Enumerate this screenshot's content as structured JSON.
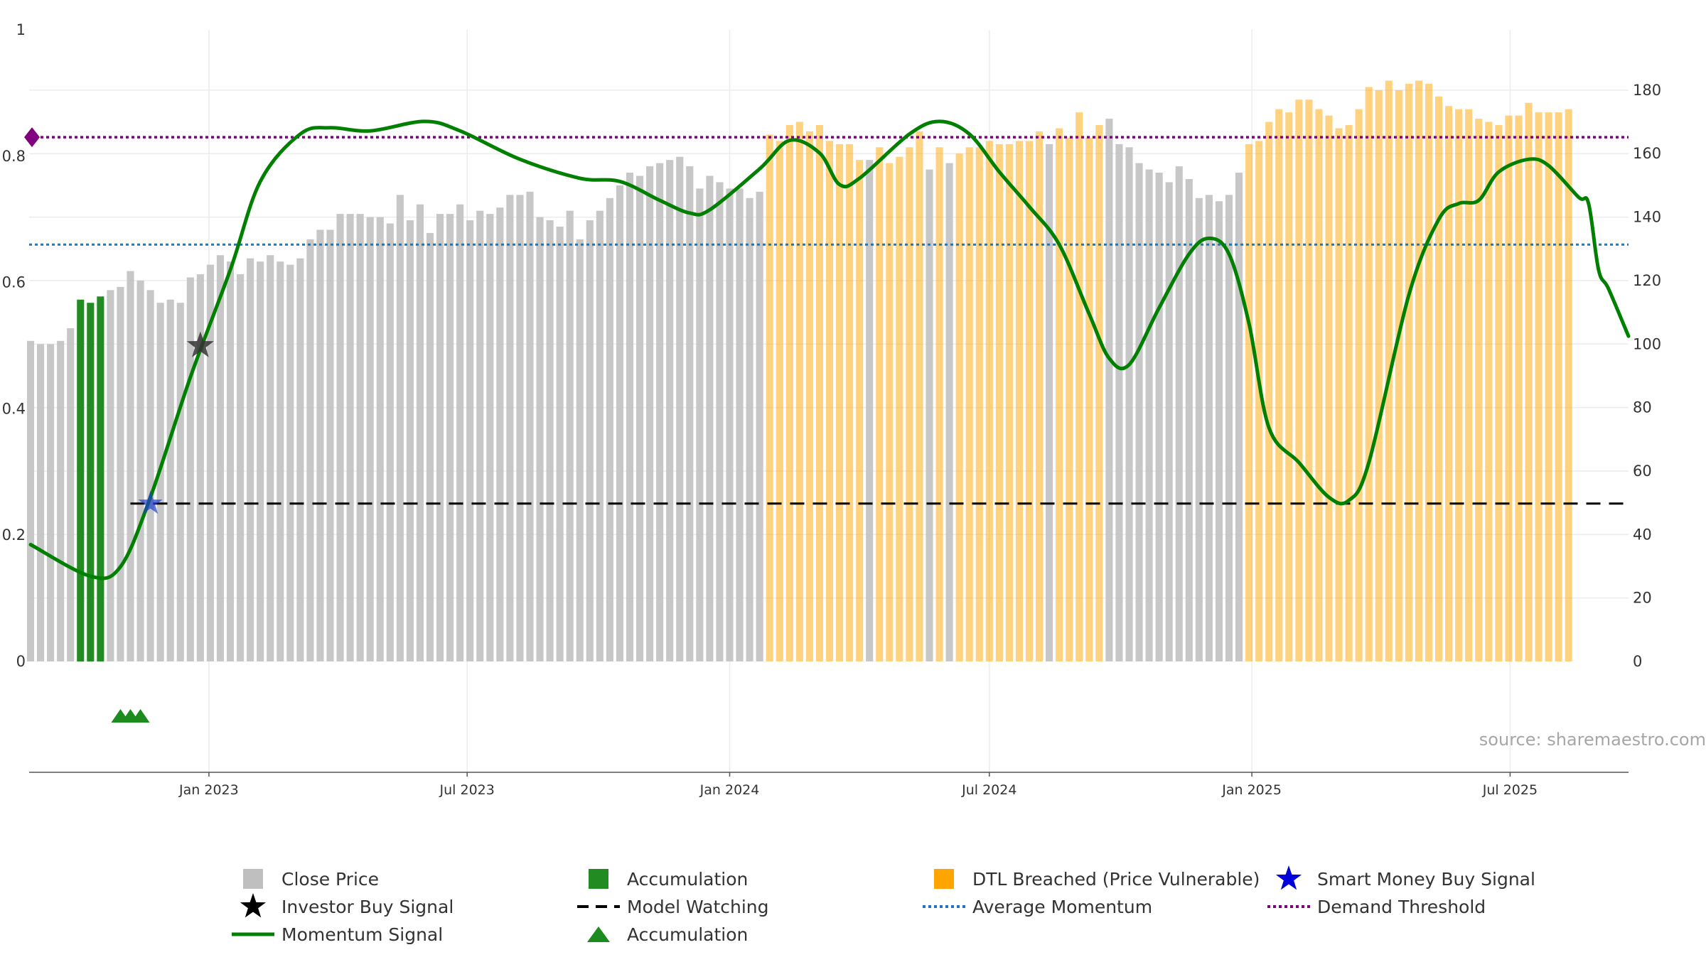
{
  "chart_data": {
    "type": "bar",
    "source": "source: sharemaestro.com",
    "y_left": {
      "ticks": [
        "0",
        "0.2",
        "0.4",
        "0.6",
        "0.8",
        "1"
      ],
      "range": [
        0,
        1
      ]
    },
    "y_right": {
      "ticks": [
        "0",
        "20",
        "40",
        "60",
        "80",
        "100",
        "120",
        "140",
        "160",
        "180"
      ],
      "range": [
        0,
        199
      ]
    },
    "x_ticks": [
      {
        "label": "Jan 2023",
        "date": "2023-01-01"
      },
      {
        "label": "Jul 2023",
        "date": "2023-07-01"
      },
      {
        "label": "Jan 2024",
        "date": "2024-01-01"
      },
      {
        "label": "Jul 2024",
        "date": "2024-07-01"
      },
      {
        "label": "Jan 2025",
        "date": "2025-01-01"
      },
      {
        "label": "Jul 2025",
        "date": "2025-07-01"
      }
    ],
    "x_range": [
      "2022-08-28",
      "2025-09-22"
    ],
    "close_price": {
      "start_date": "2022-08-29",
      "interval": "weekly",
      "values": [
        101,
        100,
        100,
        101,
        105,
        114,
        113,
        115,
        117,
        118,
        123,
        120,
        117,
        113,
        114,
        113,
        121,
        122,
        125,
        128,
        126,
        122,
        127,
        126,
        128,
        126,
        125,
        127,
        133,
        136,
        136,
        141,
        141,
        141,
        140,
        140,
        138,
        147,
        139,
        144,
        135,
        141,
        141,
        144,
        139,
        142,
        141,
        143,
        147,
        147,
        148,
        140,
        139,
        137,
        142,
        133,
        139,
        142,
        146,
        150,
        154,
        153,
        156,
        157,
        158,
        159,
        156,
        149,
        153,
        151,
        149,
        149,
        146,
        148,
        166,
        164,
        169,
        170,
        167,
        169,
        164,
        163,
        163,
        158,
        158,
        162,
        157,
        159,
        162,
        167,
        155,
        162,
        157,
        160,
        162,
        162,
        164,
        163,
        163,
        164,
        164,
        167,
        163,
        168,
        165,
        173,
        165,
        169,
        171,
        163,
        162,
        157,
        155,
        154,
        151,
        156,
        152,
        146,
        147,
        145,
        147,
        154,
        163,
        164,
        170,
        174,
        173,
        177,
        177,
        174,
        172,
        168,
        169,
        174,
        181,
        180,
        183,
        180,
        182,
        183,
        182,
        178,
        175,
        174,
        174,
        171,
        170,
        169,
        172,
        172,
        176,
        173,
        173,
        173,
        174
      ],
      "color": "#bfbfbf"
    },
    "accumulation_bars": {
      "indices": [
        5,
        6,
        7
      ],
      "color": "#228b22"
    },
    "dtl_breached": {
      "ranges": [
        [
          74,
          107
        ],
        [
          122,
          154
        ]
      ],
      "exceptions": [
        84,
        90,
        92,
        102
      ],
      "color": "#ffa500"
    },
    "momentum_signal": {
      "color": "#008000",
      "points": [
        [
          "2022-08-29",
          0.185
        ],
        [
          "2022-10-10",
          0.135
        ],
        [
          "2022-10-31",
          0.15
        ],
        [
          "2022-11-21",
          0.26
        ],
        [
          "2022-12-19",
          0.45
        ],
        [
          "2023-01-16",
          0.62
        ],
        [
          "2023-02-06",
          0.76
        ],
        [
          "2023-03-06",
          0.835
        ],
        [
          "2023-03-27",
          0.845
        ],
        [
          "2023-04-24",
          0.84
        ],
        [
          "2023-06-01",
          0.855
        ],
        [
          "2023-06-26",
          0.84
        ],
        [
          "2023-08-07",
          0.795
        ],
        [
          "2023-09-18",
          0.765
        ],
        [
          "2023-10-16",
          0.76
        ],
        [
          "2023-11-13",
          0.73
        ],
        [
          "2023-12-04",
          0.71
        ],
        [
          "2023-12-18",
          0.715
        ],
        [
          "2024-01-22",
          0.78
        ],
        [
          "2024-02-12",
          0.825
        ],
        [
          "2024-03-04",
          0.805
        ],
        [
          "2024-03-18",
          0.755
        ],
        [
          "2024-04-01",
          0.765
        ],
        [
          "2024-05-06",
          0.835
        ],
        [
          "2024-05-27",
          0.855
        ],
        [
          "2024-06-17",
          0.835
        ],
        [
          "2024-07-08",
          0.775
        ],
        [
          "2024-07-29",
          0.72
        ],
        [
          "2024-08-19",
          0.66
        ],
        [
          "2024-09-09",
          0.55
        ],
        [
          "2024-09-23",
          0.48
        ],
        [
          "2024-10-07",
          0.47
        ],
        [
          "2024-10-28",
          0.56
        ],
        [
          "2024-11-18",
          0.645
        ],
        [
          "2024-12-02",
          0.67
        ],
        [
          "2024-12-16",
          0.645
        ],
        [
          "2024-12-30",
          0.535
        ],
        [
          "2025-01-13",
          0.37
        ],
        [
          "2025-02-03",
          0.315
        ],
        [
          "2025-02-24",
          0.26
        ],
        [
          "2025-03-10",
          0.255
        ],
        [
          "2025-03-24",
          0.315
        ],
        [
          "2025-04-21",
          0.58
        ],
        [
          "2025-05-12",
          0.7
        ],
        [
          "2025-05-26",
          0.725
        ],
        [
          "2025-06-09",
          0.73
        ],
        [
          "2025-06-23",
          0.775
        ],
        [
          "2025-07-14",
          0.795
        ],
        [
          "2025-07-28",
          0.785
        ],
        [
          "2025-08-18",
          0.735
        ],
        [
          "2025-08-25",
          0.725
        ],
        [
          "2025-09-01",
          0.62
        ],
        [
          "2025-09-08",
          0.59
        ],
        [
          "2025-09-22",
          0.515
        ]
      ]
    },
    "model_watching": {
      "value": 0.25,
      "start": "2022-11-07",
      "color": "#000000"
    },
    "average_momentum": {
      "value": 0.66,
      "color": "#1f77b4"
    },
    "demand_threshold": {
      "value": 0.83,
      "color": "#800080"
    },
    "investor_buy_signal": {
      "date": "2022-12-26",
      "y": 0.5,
      "color": "#333333"
    },
    "smart_money_buy_signal": {
      "date": "2022-11-21",
      "y": 0.25,
      "color": "#1f3fd0"
    },
    "accumulation_markers": {
      "dates": [
        "2022-10-31",
        "2022-11-07",
        "2022-11-14"
      ],
      "color": "#1e8b1e"
    },
    "legend": [
      {
        "label": "Close Price",
        "symbol": "square",
        "color": "#bfbfbf"
      },
      {
        "label": "Accumulation",
        "symbol": "square",
        "color": "#228b22"
      },
      {
        "label": "DTL Breached (Price Vulnerable)",
        "symbol": "square",
        "color": "#ffa500"
      },
      {
        "label": "Smart Money Buy Signal",
        "symbol": "star",
        "color": "#0000dd"
      },
      {
        "label": "Investor Buy Signal",
        "symbol": "star",
        "color": "#000000"
      },
      {
        "label": "Model Watching",
        "symbol": "dash",
        "color": "#000000"
      },
      {
        "label": "Average Momentum",
        "symbol": "dot",
        "color": "#1f77b4"
      },
      {
        "label": "Demand Threshold",
        "symbol": "dot",
        "color": "#800080"
      },
      {
        "label": "Momentum Signal",
        "symbol": "line",
        "color": "#008000"
      },
      {
        "label": "Accumulation",
        "symbol": "triangle",
        "color": "#1e8b1e"
      }
    ]
  }
}
